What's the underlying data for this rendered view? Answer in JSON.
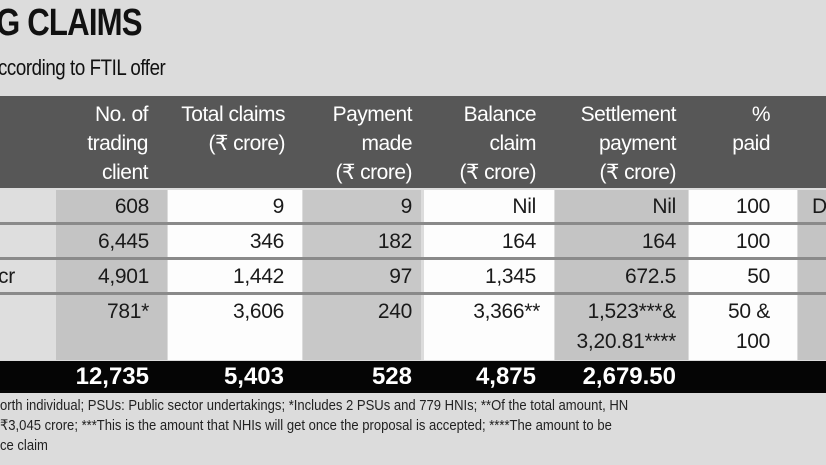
{
  "title": "G CLAIMS",
  "subtitle": "ccording to FTIL offer",
  "table": {
    "headers": [
      "No. of\ntrading\nclient",
      "Total claims\n(₹ crore)",
      "Payment\nmade\n(₹ crore)",
      "Balance\nclaim\n(₹ crore)",
      "Settlement\npayment\n(₹ crore)",
      "%\npaid"
    ],
    "rows": [
      {
        "label": "",
        "cells": [
          "608",
          "9",
          "9",
          "Nil",
          "Nil",
          "100"
        ],
        "extra": "D"
      },
      {
        "label": "",
        "cells": [
          "6,445",
          "346",
          "182",
          "164",
          "164",
          "100"
        ],
        "extra": ""
      },
      {
        "label": "cr",
        "cells": [
          "4,901",
          "1,442",
          "97",
          "1,345",
          "672.5",
          "50"
        ],
        "extra": ""
      },
      {
        "label": "",
        "cells": [
          "781*",
          "3,606",
          "240",
          "3,366**",
          "1,523***&\n3,20.81****",
          "50 &\n100"
        ],
        "extra": ""
      }
    ],
    "total": [
      "12,735",
      "5,403",
      "528",
      "4,875",
      "2,679.50"
    ]
  },
  "footnotes": [
    "orth individual; PSUs: Public sector undertakings; *Includes 2 PSUs and 779 HNIs; **Of the total amount, HN",
    " ₹3,045 crore; ***This is the amount that NHIs will get once the proposal is accepted; ****The amount to be",
    "ce claim"
  ]
}
